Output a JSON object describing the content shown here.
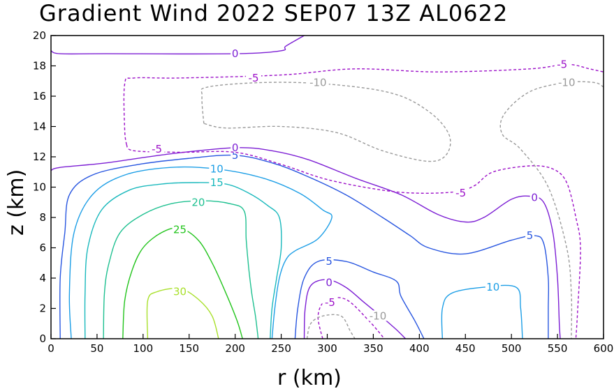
{
  "chart_data": {
    "type": "contour",
    "title": "Gradient Wind 2022 SEP07 13Z  AL0622",
    "xlabel": "r (km)",
    "ylabel": "z (km)",
    "xlim": [
      0,
      600
    ],
    "ylim": [
      0,
      20
    ],
    "xticks": [
      0,
      50,
      100,
      150,
      200,
      250,
      300,
      350,
      400,
      450,
      500,
      550,
      600
    ],
    "yticks": [
      0,
      2,
      4,
      6,
      8,
      10,
      12,
      14,
      16,
      18,
      20
    ],
    "grid": false,
    "contours": [
      {
        "level": "30",
        "color": "#a8e02a",
        "dashed": false,
        "label_at": [
          140,
          3.1
        ],
        "points": [
          [
            105,
            0
          ],
          [
            105,
            2.5
          ],
          [
            115,
            3.1
          ],
          [
            140,
            3.3
          ],
          [
            160,
            2.6
          ],
          [
            175,
            1.5
          ],
          [
            182,
            0
          ]
        ]
      },
      {
        "level": "25",
        "color": "#22c41c",
        "dashed": false,
        "label_at": [
          140,
          7.2
        ],
        "points": [
          [
            78,
            0
          ],
          [
            80,
            2.5
          ],
          [
            88,
            4.5
          ],
          [
            100,
            6
          ],
          [
            120,
            7
          ],
          [
            140,
            7.3
          ],
          [
            160,
            6.5
          ],
          [
            175,
            5
          ],
          [
            190,
            3
          ],
          [
            202,
            1.2
          ],
          [
            208,
            0
          ]
        ]
      },
      {
        "level": "20",
        "color": "#1ec090",
        "dashed": false,
        "label_at": [
          160,
          9.0
        ],
        "points": [
          [
            57,
            0
          ],
          [
            58,
            3
          ],
          [
            63,
            5
          ],
          [
            75,
            7
          ],
          [
            100,
            8.2
          ],
          [
            130,
            8.9
          ],
          [
            165,
            9.1
          ],
          [
            195,
            8.9
          ],
          [
            210,
            8.4
          ],
          [
            212,
            6.5
          ],
          [
            215,
            4.5
          ],
          [
            218,
            3
          ],
          [
            222,
            1.5
          ],
          [
            225,
            0
          ]
        ]
      },
      {
        "level": "15",
        "color": "#18b8bc",
        "dashed": false,
        "label_at": [
          180,
          10.3
        ],
        "points": [
          [
            37,
            0
          ],
          [
            37,
            3
          ],
          [
            40,
            6
          ],
          [
            55,
            8.5
          ],
          [
            85,
            9.8
          ],
          [
            120,
            10.2
          ],
          [
            155,
            10.3
          ],
          [
            190,
            10.2
          ],
          [
            215,
            9.6
          ],
          [
            235,
            8.8
          ],
          [
            248,
            8
          ],
          [
            250,
            6
          ],
          [
            245,
            4
          ],
          [
            240,
            2
          ],
          [
            238,
            0
          ]
        ]
      },
      {
        "level": "10",
        "color": "#1c9ee6",
        "dashed": false,
        "label_at": [
          180,
          11.2
        ],
        "label2_at": [
          480,
          3.4
        ],
        "points": [
          [
            22,
            0
          ],
          [
            20,
            3
          ],
          [
            25,
            7
          ],
          [
            45,
            9.5
          ],
          [
            80,
            10.8
          ],
          [
            130,
            11.3
          ],
          [
            180,
            11.2
          ],
          [
            230,
            10.6
          ],
          [
            270,
            9.6
          ],
          [
            295,
            8.5
          ],
          [
            305,
            8
          ],
          [
            290,
            6.6
          ],
          [
            265,
            5.8
          ],
          [
            255,
            5.2
          ],
          [
            248,
            4
          ],
          [
            243,
            2
          ],
          [
            240,
            0
          ]
        ],
        "points2": [
          [
            425,
            0
          ],
          [
            425,
            2
          ],
          [
            435,
            3
          ],
          [
            470,
            3.4
          ],
          [
            505,
            3.4
          ],
          [
            510,
            2
          ],
          [
            512,
            0
          ]
        ]
      },
      {
        "level": "5",
        "color": "#2856e0",
        "dashed": false,
        "label_at": [
          200,
          12.1
        ],
        "label2_at": [
          302,
          5.1
        ],
        "label3_at": [
          520,
          6.8
        ],
        "points": [
          [
            10,
            0
          ],
          [
            10,
            4
          ],
          [
            15,
            7
          ],
          [
            20,
            9.5
          ],
          [
            45,
            10.8
          ],
          [
            95,
            11.5
          ],
          [
            150,
            11.9
          ],
          [
            200,
            12.1
          ],
          [
            240,
            11.6
          ],
          [
            275,
            10.8
          ],
          [
            320,
            9.5
          ],
          [
            360,
            8
          ],
          [
            390,
            6.8
          ],
          [
            410,
            6
          ],
          [
            450,
            5.6
          ],
          [
            500,
            6.5
          ],
          [
            525,
            6.8
          ],
          [
            535,
            6.3
          ],
          [
            540,
            4
          ],
          [
            540,
            2
          ],
          [
            540,
            0
          ]
        ],
        "points2": [
          [
            265,
            0
          ],
          [
            268,
            2
          ],
          [
            275,
            4
          ],
          [
            290,
            5.1
          ],
          [
            320,
            5.1
          ],
          [
            350,
            4.4
          ],
          [
            375,
            3.8
          ],
          [
            380,
            2.8
          ],
          [
            395,
            1.2
          ],
          [
            405,
            0
          ]
        ]
      },
      {
        "level": "0",
        "color": "#7c1ed4",
        "dashed": false,
        "label_at": [
          200,
          12.6
        ],
        "label2_at": [
          302,
          3.7
        ],
        "label3_at": [
          525,
          9.3
        ],
        "label4_at": [
          200,
          18.8
        ],
        "points": [
          [
            0,
            11.1
          ],
          [
            10,
            11.3
          ],
          [
            60,
            11.6
          ],
          [
            130,
            12.2
          ],
          [
            200,
            12.6
          ],
          [
            240,
            12.4
          ],
          [
            280,
            11.8
          ],
          [
            330,
            10.6
          ],
          [
            380,
            9.5
          ],
          [
            420,
            8.2
          ],
          [
            450,
            7.7
          ],
          [
            470,
            8
          ],
          [
            500,
            9.2
          ],
          [
            520,
            9.4
          ],
          [
            535,
            9
          ],
          [
            545,
            7
          ],
          [
            550,
            4
          ],
          [
            552,
            1
          ],
          [
            553,
            0
          ]
        ],
        "points2": [
          [
            275,
            0
          ],
          [
            276,
            2
          ],
          [
            282,
            3.5
          ],
          [
            300,
            3.9
          ],
          [
            320,
            3.4
          ],
          [
            340,
            2.4
          ],
          [
            360,
            1.4
          ],
          [
            375,
            0.6
          ],
          [
            385,
            0
          ]
        ],
        "points3": [
          [
            0,
            19
          ],
          [
            10,
            18.8
          ],
          [
            60,
            18.8
          ],
          [
            200,
            18.8
          ],
          [
            250,
            19
          ],
          [
            255,
            19.3
          ],
          [
            275,
            20
          ]
        ]
      },
      {
        "level": "-5",
        "color": "#9c10c8",
        "dashed": true,
        "label_at": [
          115,
          12.5
        ],
        "label2_at": [
          303,
          2.4
        ],
        "label3_at": [
          445,
          9.6
        ],
        "label4_at": [
          220,
          17.2
        ],
        "label5_at": [
          555,
          18.1
        ],
        "points": [
          [
            82,
            12.8
          ],
          [
            80,
            13.8
          ],
          [
            80,
            16.8
          ],
          [
            90,
            17.2
          ],
          [
            140,
            17.2
          ],
          [
            250,
            17.4
          ],
          [
            330,
            17.8
          ],
          [
            420,
            17.6
          ],
          [
            520,
            17.8
          ],
          [
            560,
            18.1
          ],
          [
            585,
            17.8
          ],
          [
            600,
            17.6
          ]
        ],
        "points2": [
          [
            82,
            12.8
          ],
          [
            90,
            12.4
          ],
          [
            140,
            12.3
          ],
          [
            200,
            12.3
          ],
          [
            250,
            11.5
          ],
          [
            300,
            10.5
          ],
          [
            360,
            9.8
          ],
          [
            400,
            9.6
          ],
          [
            440,
            9.7
          ],
          [
            460,
            10.1
          ],
          [
            480,
            11
          ],
          [
            520,
            11.4
          ],
          [
            545,
            11.2
          ],
          [
            560,
            10.3
          ],
          [
            570,
            8
          ],
          [
            575,
            6
          ],
          [
            572,
            2
          ],
          [
            570,
            0
          ]
        ],
        "points3": [
          [
            295,
            0
          ],
          [
            290,
            1.5
          ],
          [
            298,
            2.5
          ],
          [
            320,
            2.6
          ],
          [
            345,
            1.2
          ],
          [
            362,
            0
          ]
        ]
      },
      {
        "level": "-10",
        "color": "#9a9a9a",
        "dashed": true,
        "label_at": [
          290,
          16.9
        ],
        "label2_at": [
          355,
          1.5
        ],
        "label3_at": [
          560,
          16.9
        ],
        "points": [
          [
            166,
            14.2
          ],
          [
            164,
            16
          ],
          [
            170,
            16.6
          ],
          [
            230,
            16.9
          ],
          [
            300,
            16.8
          ],
          [
            370,
            16.2
          ],
          [
            410,
            15
          ],
          [
            432,
            13.5
          ],
          [
            430,
            12.2
          ],
          [
            410,
            11.7
          ],
          [
            360,
            12.4
          ],
          [
            310,
            13.6
          ],
          [
            250,
            14
          ],
          [
            190,
            13.9
          ],
          [
            166,
            14.2
          ]
        ],
        "points2": [
          [
            278,
            0
          ],
          [
            282,
            1
          ],
          [
            295,
            1.5
          ],
          [
            315,
            1.5
          ],
          [
            325,
            0.5
          ],
          [
            330,
            0
          ]
        ],
        "points3": [
          [
            600,
            16.6
          ],
          [
            590,
            16.9
          ],
          [
            560,
            16.9
          ],
          [
            520,
            16.3
          ],
          [
            492,
            14.8
          ],
          [
            490,
            13.5
          ],
          [
            510,
            12.5
          ],
          [
            540,
            10
          ],
          [
            560,
            6
          ],
          [
            565,
            3
          ],
          [
            565,
            0
          ]
        ]
      }
    ]
  }
}
